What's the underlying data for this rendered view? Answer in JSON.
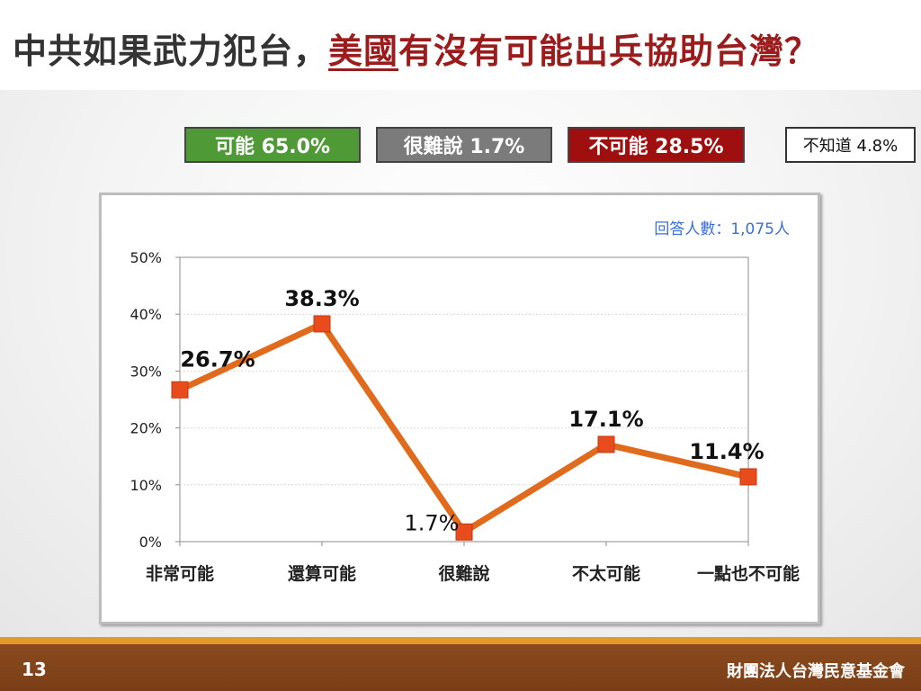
{
  "title": {
    "part1": "中共如果武力犯台，",
    "highlight_underlined": "美國",
    "highlight_rest": "有沒有可能出兵協助台灣？"
  },
  "summary": [
    {
      "label": "可能 65.0%",
      "color": "#4f9a37"
    },
    {
      "label": "很難說 1.7%",
      "color": "#7b7b7b"
    },
    {
      "label": "不可能 28.5%",
      "color": "#a00f0f"
    },
    {
      "label": "不知道 4.8%",
      "color": "#ffffff"
    }
  ],
  "respondents": "回答人數：1,075人",
  "chart_data": {
    "type": "line",
    "categories": [
      "非常可能",
      "還算可能",
      "很難說",
      "不太可能",
      "一點也不可能"
    ],
    "series": [
      {
        "values": [
          26.7,
          38.3,
          1.7,
          17.1,
          11.4
        ],
        "color": "#e06b1d"
      }
    ],
    "data_labels": [
      "26.7%",
      "38.3%",
      "1.7%",
      "17.1%",
      "11.4%"
    ],
    "y_ticks": [
      "0%",
      "10%",
      "20%",
      "30%",
      "40%",
      "50%"
    ],
    "ylim": [
      0,
      50
    ],
    "grid": true
  },
  "footer": {
    "page_number": "13",
    "organization": "財團法人台灣民意基金會"
  }
}
